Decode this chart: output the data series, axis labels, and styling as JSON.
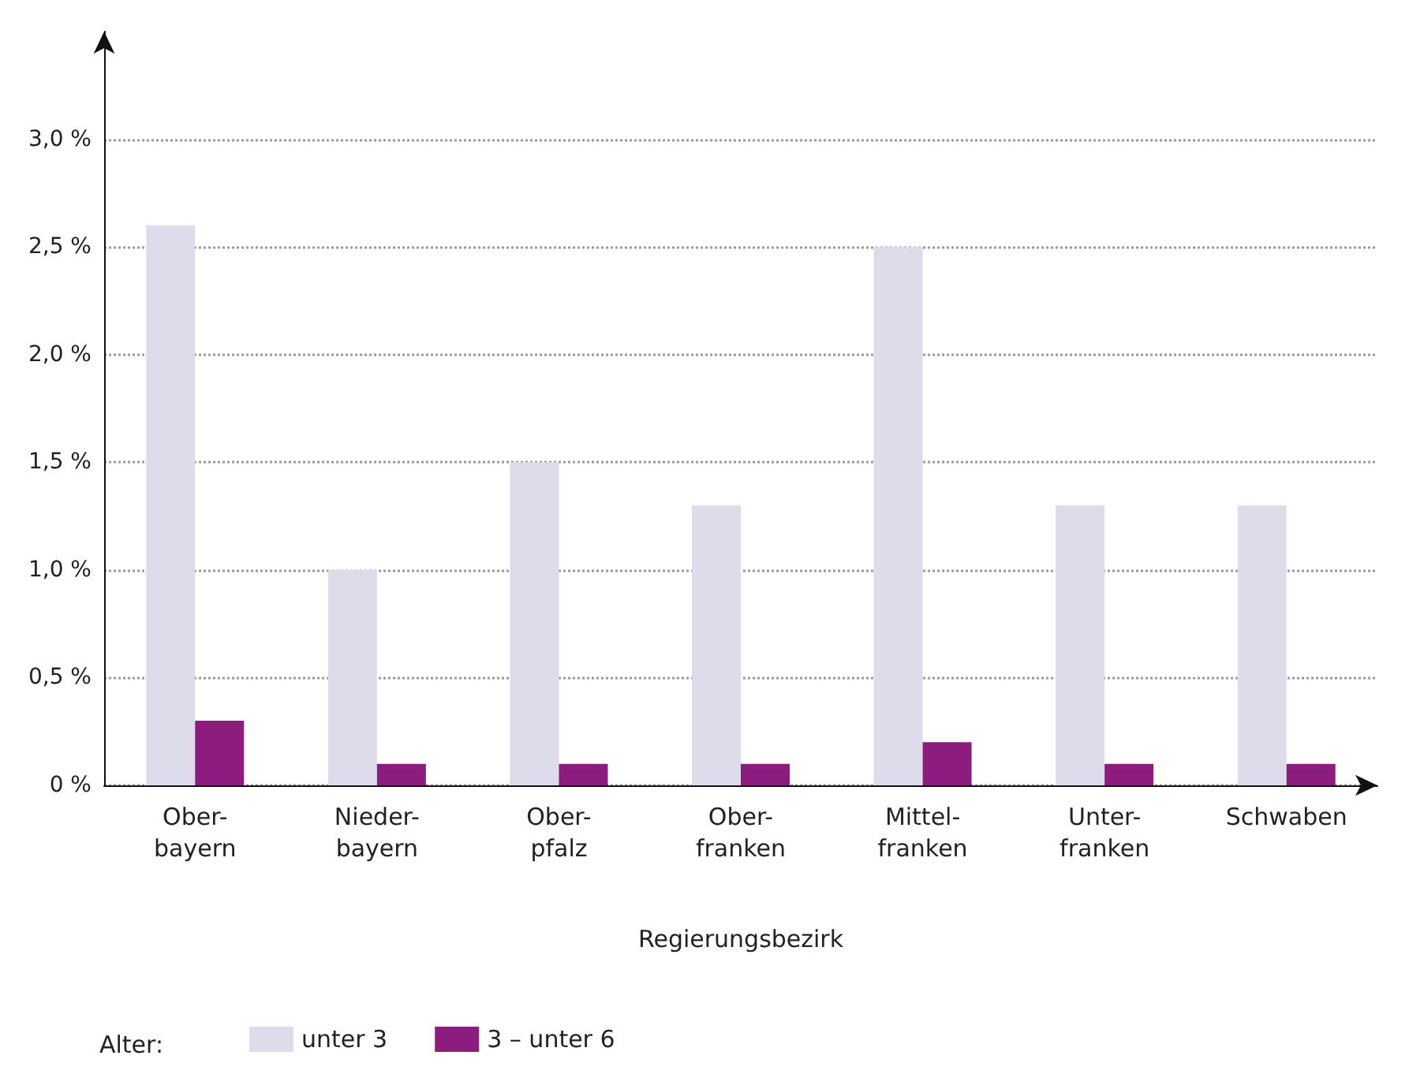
{
  "chart_data": {
    "type": "bar",
    "xlabel": "Regierungsbezirk",
    "legend_title": "Alter:",
    "categories": [
      "Ober-\nbayern",
      "Nieder-\nbayern",
      "Ober-\npfalz",
      "Ober-\nfranken",
      "Mittel-\nfranken",
      "Unter-\nfranken",
      "Schwaben"
    ],
    "series": [
      {
        "name": "unter 3",
        "color": "#dedbeb",
        "values": [
          2.6,
          1.0,
          1.5,
          1.3,
          2.5,
          1.3,
          1.3
        ]
      },
      {
        "name": "3 – unter 6",
        "color": "#8d1c7f",
        "values": [
          0.3,
          0.1,
          0.1,
          0.1,
          0.2,
          0.1,
          0.1
        ]
      }
    ],
    "ylim": [
      0,
      3.5
    ],
    "yticks": [
      {
        "value": 0,
        "label": "0 %"
      },
      {
        "value": 0.5,
        "label": "0,5 %"
      },
      {
        "value": 1,
        "label": "1,0 %"
      },
      {
        "value": 1.5,
        "label": "1,5 %"
      },
      {
        "value": 2,
        "label": "2,0 %"
      },
      {
        "value": 2.5,
        "label": "2,5 %"
      },
      {
        "value": 3,
        "label": "3,0 %"
      }
    ],
    "grid": "y",
    "legend": "bottom left"
  }
}
